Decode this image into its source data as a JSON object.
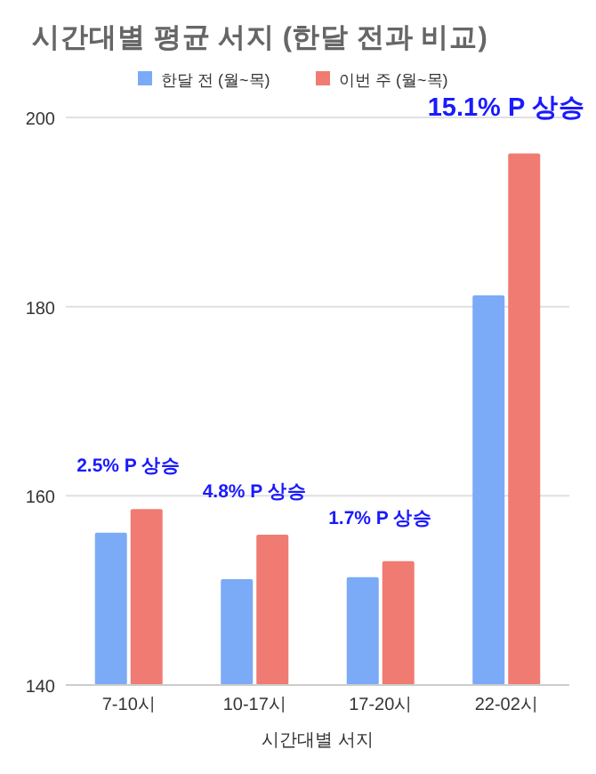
{
  "chart_data": {
    "type": "bar",
    "title": "시간대별 평균 서지  (한달 전과 비교)",
    "xlabel": "시간대별 서지",
    "categories": [
      "7-10시",
      "10-17시",
      "17-20시",
      "22-02시"
    ],
    "series": [
      {
        "name": "한달 전 (월~목)",
        "color": "#7baaf7",
        "values": [
          156.1,
          151.2,
          151.4,
          181.2
        ]
      },
      {
        "name": "이번 주 (월~목)",
        "color": "#f07b72",
        "values": [
          158.6,
          155.9,
          153.1,
          196.2
        ]
      }
    ],
    "ylim": [
      140,
      200
    ],
    "yticks": [
      140,
      160,
      180,
      200
    ],
    "grid": "y",
    "legend": "top",
    "annotations": [
      "2.5% P 상승",
      "4.8% P 상승",
      "1.7% P 상승",
      "15.1% P 상승"
    ]
  }
}
